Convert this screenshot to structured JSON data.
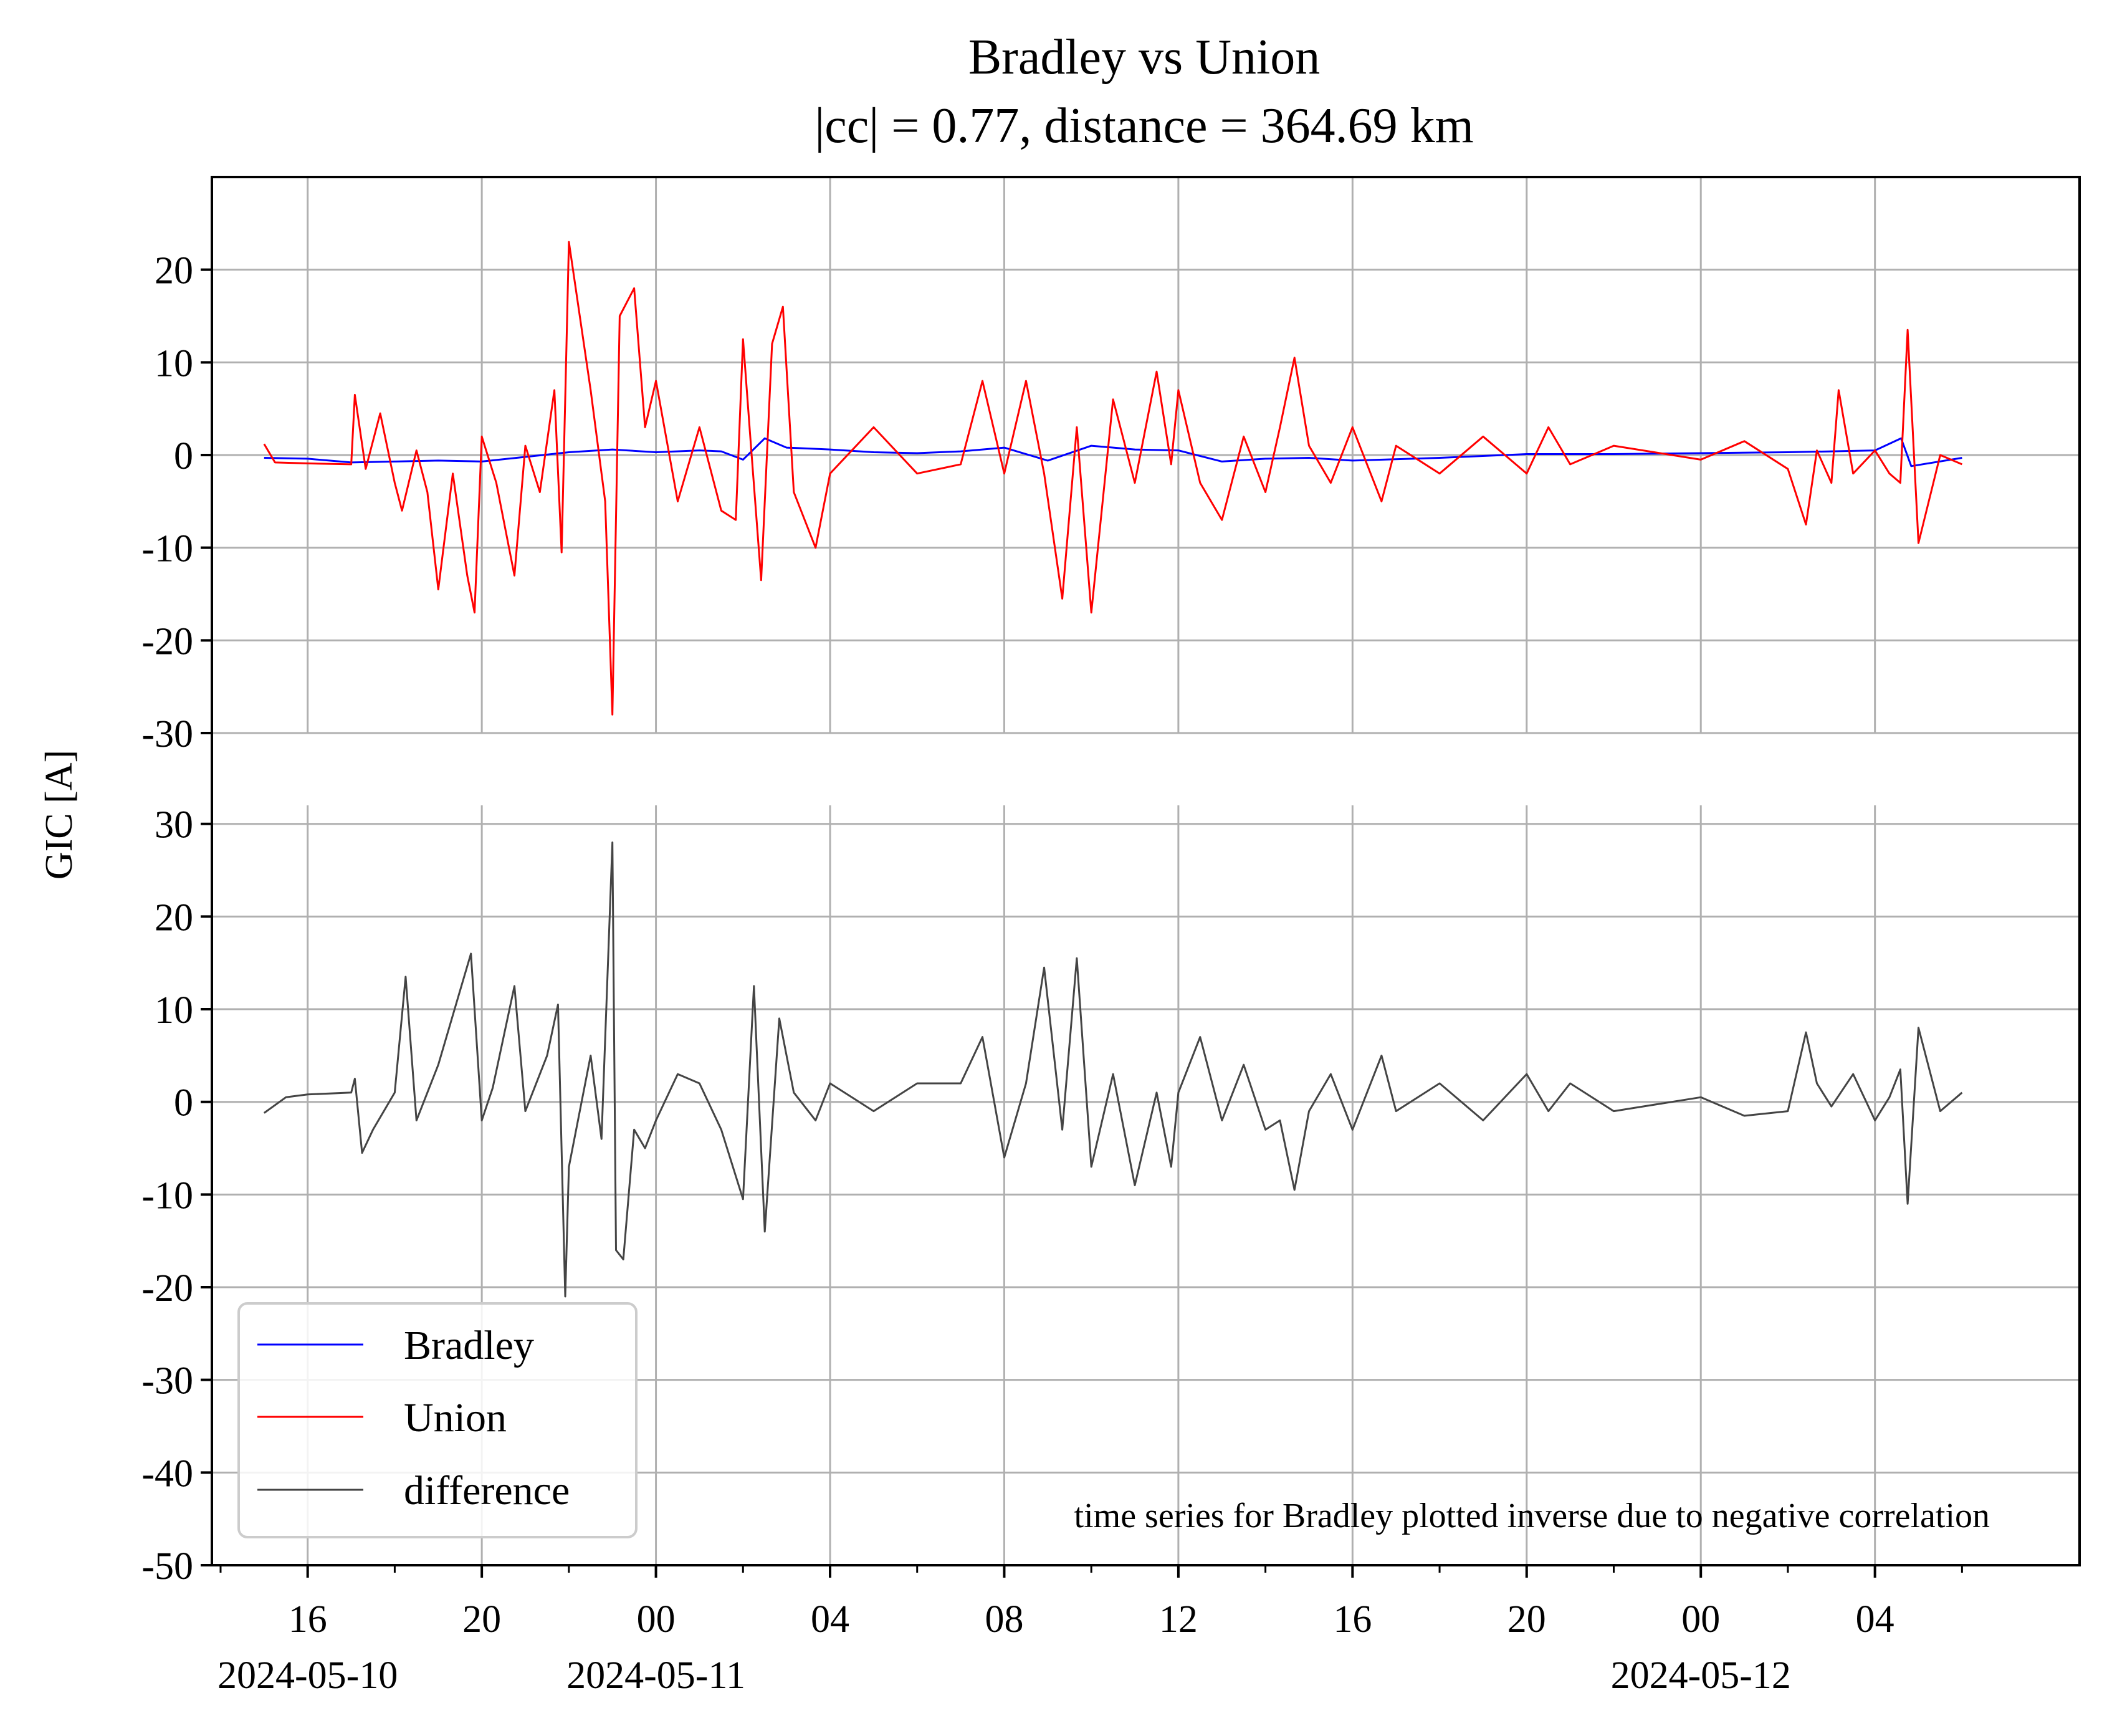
{
  "figure": {
    "title_line1": "Bradley vs Union",
    "title_line2": "|cc| = 0.77, distance = 364.69 km",
    "ylabel": "GIC [A]",
    "annotation": "time series for Bradley plotted inverse due to negative correlation"
  },
  "colors": {
    "Bradley": "#0000ff",
    "Union": "#ff0000",
    "difference": "#444444",
    "grid": "#b0b0b0"
  },
  "chart_data": [
    {
      "type": "line",
      "panel": "top",
      "xlim": [
        "2024-05-10 13:48",
        "2024-05-12 08:42"
      ],
      "ylim": [
        -30,
        30
      ],
      "yticks": [
        -30,
        -20,
        -10,
        0,
        10,
        20
      ],
      "grid": true,
      "series": [
        {
          "name": "Bradley",
          "x": [
            "2024-05-10 15:00",
            "2024-05-10 16:00",
            "2024-05-10 17:00",
            "2024-05-10 18:00",
            "2024-05-10 19:00",
            "2024-05-10 20:00",
            "2024-05-10 21:00",
            "2024-05-10 22:00",
            "2024-05-10 23:00",
            "2024-05-11 00:00",
            "2024-05-11 01:00",
            "2024-05-11 01:30",
            "2024-05-11 02:00",
            "2024-05-11 02:30",
            "2024-05-11 03:00",
            "2024-05-11 04:00",
            "2024-05-11 05:00",
            "2024-05-11 06:00",
            "2024-05-11 07:00",
            "2024-05-11 08:00",
            "2024-05-11 09:00",
            "2024-05-11 10:00",
            "2024-05-11 11:00",
            "2024-05-11 12:00",
            "2024-05-11 13:00",
            "2024-05-11 14:00",
            "2024-05-11 15:00",
            "2024-05-11 16:00",
            "2024-05-11 18:00",
            "2024-05-11 20:00",
            "2024-05-11 22:00",
            "2024-05-12 00:00",
            "2024-05-12 02:00",
            "2024-05-12 03:00",
            "2024-05-12 04:00",
            "2024-05-12 04:36",
            "2024-05-12 04:50",
            "2024-05-12 06:00"
          ],
          "y": [
            -0.3,
            -0.4,
            -0.8,
            -0.7,
            -0.6,
            -0.7,
            -0.2,
            0.3,
            0.6,
            0.3,
            0.5,
            0.4,
            -0.5,
            1.8,
            0.8,
            0.6,
            0.3,
            0.2,
            0.4,
            0.8,
            -0.6,
            1.0,
            0.6,
            0.5,
            -0.7,
            -0.4,
            -0.3,
            -0.6,
            -0.3,
            0.1,
            0.1,
            0.2,
            0.3,
            0.4,
            0.5,
            1.8,
            -1.2,
            -0.3
          ]
        },
        {
          "name": "Union",
          "x": [
            "2024-05-10 15:00",
            "2024-05-10 15:15",
            "2024-05-10 16:00",
            "2024-05-10 17:00",
            "2024-05-10 17:05",
            "2024-05-10 17:20",
            "2024-05-10 17:40",
            "2024-05-10 18:00",
            "2024-05-10 18:10",
            "2024-05-10 18:30",
            "2024-05-10 18:45",
            "2024-05-10 19:00",
            "2024-05-10 19:20",
            "2024-05-10 19:40",
            "2024-05-10 19:50",
            "2024-05-10 20:00",
            "2024-05-10 20:20",
            "2024-05-10 20:45",
            "2024-05-10 21:00",
            "2024-05-10 21:20",
            "2024-05-10 21:40",
            "2024-05-10 21:50",
            "2024-05-10 22:00",
            "2024-05-10 22:30",
            "2024-05-10 22:50",
            "2024-05-10 23:00",
            "2024-05-10 23:10",
            "2024-05-10 23:30",
            "2024-05-10 23:45",
            "2024-05-11 00:00",
            "2024-05-11 00:30",
            "2024-05-11 01:00",
            "2024-05-11 01:30",
            "2024-05-11 01:50",
            "2024-05-11 02:00",
            "2024-05-11 02:10",
            "2024-05-11 02:25",
            "2024-05-11 02:40",
            "2024-05-11 02:55",
            "2024-05-11 03:10",
            "2024-05-11 03:40",
            "2024-05-11 04:00",
            "2024-05-11 05:00",
            "2024-05-11 06:00",
            "2024-05-11 07:00",
            "2024-05-11 07:30",
            "2024-05-11 08:00",
            "2024-05-11 08:30",
            "2024-05-11 08:55",
            "2024-05-11 09:20",
            "2024-05-11 09:40",
            "2024-05-11 10:00",
            "2024-05-11 10:30",
            "2024-05-11 11:00",
            "2024-05-11 11:30",
            "2024-05-11 11:50",
            "2024-05-11 12:00",
            "2024-05-11 12:30",
            "2024-05-11 13:00",
            "2024-05-11 13:30",
            "2024-05-11 14:00",
            "2024-05-11 14:20",
            "2024-05-11 14:40",
            "2024-05-11 15:00",
            "2024-05-11 15:30",
            "2024-05-11 16:00",
            "2024-05-11 16:40",
            "2024-05-11 17:00",
            "2024-05-11 18:00",
            "2024-05-11 19:00",
            "2024-05-11 20:00",
            "2024-05-11 20:30",
            "2024-05-11 21:00",
            "2024-05-11 22:00",
            "2024-05-12 00:00",
            "2024-05-12 01:00",
            "2024-05-12 02:00",
            "2024-05-12 02:25",
            "2024-05-12 02:40",
            "2024-05-12 03:00",
            "2024-05-12 03:10",
            "2024-05-12 03:30",
            "2024-05-12 04:00",
            "2024-05-12 04:20",
            "2024-05-12 04:35",
            "2024-05-12 04:45",
            "2024-05-12 05:00",
            "2024-05-12 05:30",
            "2024-05-12 06:00"
          ],
          "y": [
            1.2,
            -0.8,
            -0.9,
            -1.0,
            6.5,
            -1.5,
            4.5,
            -3.0,
            -6.0,
            0.5,
            -4.0,
            -14.5,
            -2.0,
            -13.0,
            -17.0,
            2.0,
            -3.0,
            -13.0,
            1.0,
            -4.0,
            7.0,
            -10.5,
            23.0,
            7.0,
            -5.0,
            -28.0,
            15.0,
            18.0,
            3.0,
            8.0,
            -5.0,
            3.0,
            -6.0,
            -7.0,
            12.5,
            2.0,
            -13.5,
            12.0,
            16.0,
            -4.0,
            -10.0,
            -2.0,
            3.0,
            -2.0,
            -1.0,
            8.0,
            -2.0,
            8.0,
            -2.0,
            -15.5,
            3.0,
            -17.0,
            6.0,
            -3.0,
            9.0,
            -1.0,
            7.0,
            -3.0,
            -7.0,
            2.0,
            -4.0,
            3.0,
            10.5,
            1.0,
            -3.0,
            3.0,
            -5.0,
            1.0,
            -2.0,
            2.0,
            -2.0,
            3.0,
            -1.0,
            1.0,
            -0.5,
            1.5,
            -1.5,
            -7.5,
            0.5,
            -3.0,
            7.0,
            -2.0,
            0.5,
            -2.0,
            -3.0,
            13.5,
            -9.5,
            0.0,
            -1.0
          ]
        }
      ]
    },
    {
      "type": "line",
      "panel": "bottom",
      "xlim": [
        "2024-05-10 13:48",
        "2024-05-12 08:42"
      ],
      "ylim": [
        -50,
        32
      ],
      "yticks": [
        -50,
        -40,
        -30,
        -20,
        -10,
        0,
        10,
        20,
        30
      ],
      "xticks": [
        "16",
        "20",
        "00",
        "04",
        "08",
        "12",
        "16",
        "20",
        "00",
        "04"
      ],
      "xtick_dates": [
        "2024-05-10",
        "2024-05-11",
        "2024-05-12"
      ],
      "grid": true,
      "legend_position": "lower-left",
      "series": [
        {
          "name": "difference",
          "x": [
            "2024-05-10 15:00",
            "2024-05-10 15:30",
            "2024-05-10 16:00",
            "2024-05-10 17:00",
            "2024-05-10 17:05",
            "2024-05-10 17:15",
            "2024-05-10 17:30",
            "2024-05-10 18:00",
            "2024-05-10 18:15",
            "2024-05-10 18:30",
            "2024-05-10 19:00",
            "2024-05-10 19:30",
            "2024-05-10 19:45",
            "2024-05-10 20:00",
            "2024-05-10 20:15",
            "2024-05-10 20:45",
            "2024-05-10 21:00",
            "2024-05-10 21:30",
            "2024-05-10 21:45",
            "2024-05-10 21:55",
            "2024-05-10 22:00",
            "2024-05-10 22:30",
            "2024-05-10 22:45",
            "2024-05-10 23:00",
            "2024-05-10 23:05",
            "2024-05-10 23:15",
            "2024-05-10 23:30",
            "2024-05-10 23:45",
            "2024-05-11 00:00",
            "2024-05-11 00:30",
            "2024-05-11 01:00",
            "2024-05-11 01:30",
            "2024-05-11 02:00",
            "2024-05-11 02:15",
            "2024-05-11 02:30",
            "2024-05-11 02:50",
            "2024-05-11 03:10",
            "2024-05-11 03:40",
            "2024-05-11 04:00",
            "2024-05-11 05:00",
            "2024-05-11 06:00",
            "2024-05-11 07:00",
            "2024-05-11 07:30",
            "2024-05-11 08:00",
            "2024-05-11 08:30",
            "2024-05-11 08:55",
            "2024-05-11 09:20",
            "2024-05-11 09:40",
            "2024-05-11 10:00",
            "2024-05-11 10:30",
            "2024-05-11 11:00",
            "2024-05-11 11:30",
            "2024-05-11 11:50",
            "2024-05-11 12:00",
            "2024-05-11 12:30",
            "2024-05-11 13:00",
            "2024-05-11 13:30",
            "2024-05-11 14:00",
            "2024-05-11 14:20",
            "2024-05-11 14:40",
            "2024-05-11 15:00",
            "2024-05-11 15:30",
            "2024-05-11 16:00",
            "2024-05-11 16:40",
            "2024-05-11 17:00",
            "2024-05-11 18:00",
            "2024-05-11 19:00",
            "2024-05-11 20:00",
            "2024-05-11 20:30",
            "2024-05-11 21:00",
            "2024-05-11 22:00",
            "2024-05-12 00:00",
            "2024-05-12 01:00",
            "2024-05-12 02:00",
            "2024-05-12 02:25",
            "2024-05-12 02:40",
            "2024-05-12 03:00",
            "2024-05-12 03:30",
            "2024-05-12 04:00",
            "2024-05-12 04:20",
            "2024-05-12 04:35",
            "2024-05-12 04:45",
            "2024-05-12 05:00",
            "2024-05-12 05:30",
            "2024-05-12 06:00"
          ],
          "y": [
            -1.2,
            0.5,
            0.8,
            1.0,
            2.5,
            -5.5,
            -3.0,
            1.0,
            13.5,
            -2.0,
            4.0,
            12.0,
            16.0,
            -2.0,
            1.5,
            12.5,
            -1.0,
            5.0,
            10.5,
            -21.0,
            -7.0,
            5.0,
            -4.0,
            28.0,
            -16.0,
            -17.0,
            -3.0,
            -5.0,
            -2.0,
            3.0,
            2.0,
            -3.0,
            -10.5,
            12.5,
            -14.0,
            9.0,
            1.0,
            -2.0,
            2.0,
            -1.0,
            2.0,
            2.0,
            7.0,
            -6.0,
            2.0,
            14.5,
            -3.0,
            15.5,
            -7.0,
            3.0,
            -9.0,
            1.0,
            -7.0,
            1.0,
            7.0,
            -2.0,
            4.0,
            -3.0,
            -2.0,
            -9.5,
            -1.0,
            3.0,
            -3.0,
            5.0,
            -1.0,
            2.0,
            -2.0,
            3.0,
            -1.0,
            2.0,
            -1.0,
            0.5,
            -1.5,
            -1.0,
            7.5,
            2.0,
            -0.5,
            3.0,
            -2.0,
            0.5,
            3.5,
            -11.0,
            8.0,
            -1.0,
            1.0
          ]
        }
      ]
    }
  ],
  "legend": [
    {
      "label": "Bradley"
    },
    {
      "label": "Union"
    },
    {
      "label": "difference"
    }
  ]
}
